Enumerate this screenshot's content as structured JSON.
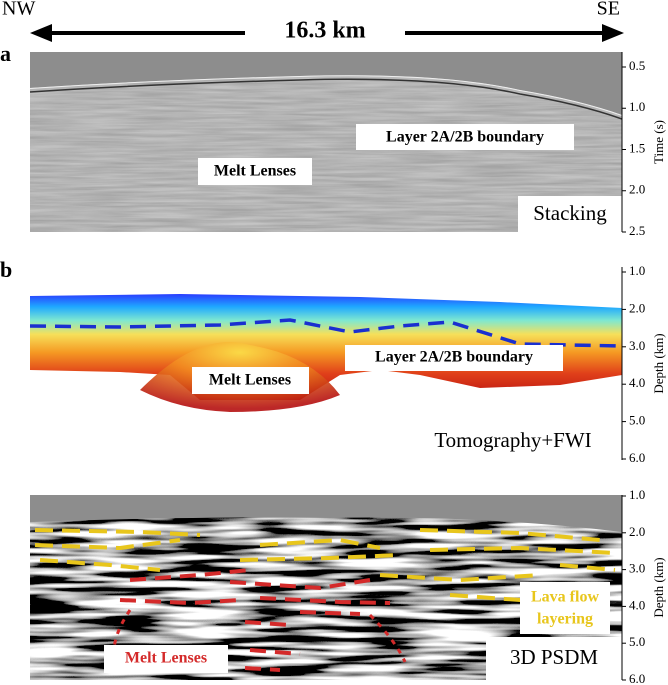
{
  "header": {
    "left": "NW",
    "right": "SE",
    "distance": "16.3 km"
  },
  "panels": [
    {
      "letter": "a",
      "axis_label": "Time (s)",
      "ticks": [
        "0.5",
        "1.0",
        "1.5",
        "2.0",
        "2.5"
      ],
      "annotations": [
        "Layer 2A/2B boundary",
        "Melt Lenses"
      ],
      "method": "Stacking"
    },
    {
      "letter": "b",
      "axis_label": "Depth (km)",
      "ticks": [
        "1.0",
        "2.0",
        "3.0",
        "4.0",
        "5.0",
        "6.0"
      ],
      "annotations": [
        "Layer 2A/2B boundary",
        "Melt Lenses"
      ],
      "method": "Tomography+FWI"
    },
    {
      "axis_label": "Depth (km)",
      "ticks": [
        "1.0",
        "2.0",
        "3.0",
        "4.0",
        "5.0",
        "6.0"
      ],
      "annotations": [
        "Lava flow",
        "layering",
        "Melt Lenses"
      ],
      "method": "3D PSDM"
    }
  ]
}
